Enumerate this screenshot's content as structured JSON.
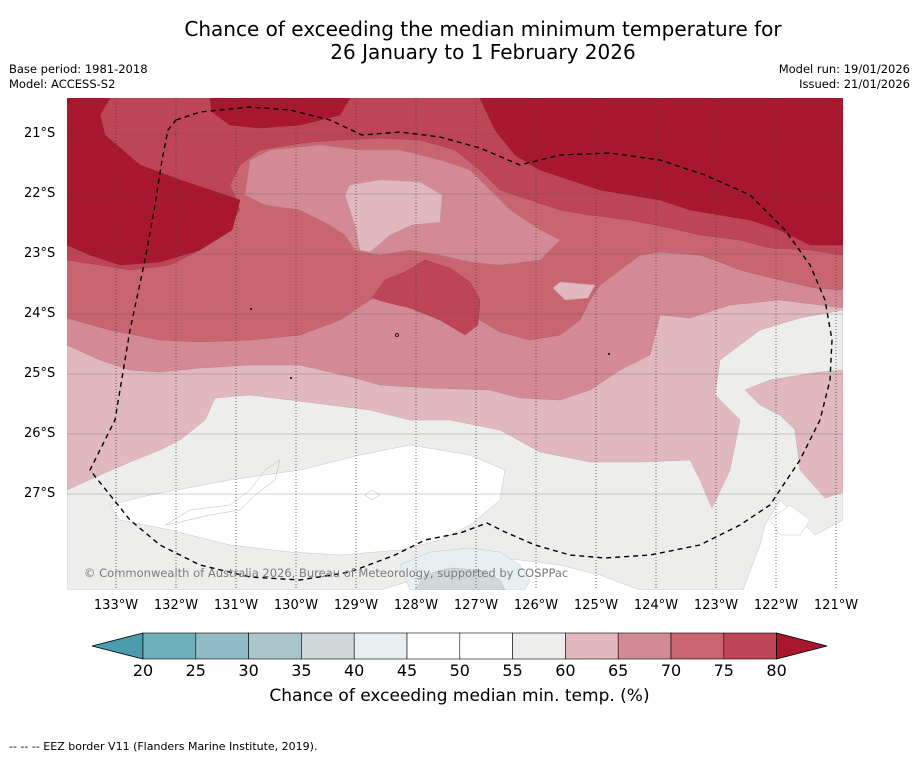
{
  "title": {
    "line1": "Chance of exceeding the median minimum temperature for",
    "line2": "26 January to 1 February 2026"
  },
  "meta_left": {
    "base_period": "Base period: 1981-2018",
    "model": "Model: ACCESS-S2"
  },
  "meta_right": {
    "model_run": "Model run: 19/01/2026",
    "issued": "Issued: 21/01/2026"
  },
  "map": {
    "lat_labels": [
      "21°S",
      "22°S",
      "23°S",
      "24°S",
      "25°S",
      "26°S",
      "27°S"
    ],
    "lon_labels": [
      "133°W",
      "132°W",
      "131°W",
      "130°W",
      "129°W",
      "128°W",
      "127°W",
      "126°W",
      "125°W",
      "124°W",
      "123°W",
      "122°W",
      "121°W"
    ],
    "extent": {
      "lon_min": -133.8,
      "lon_max": -120.9,
      "lat_min": -28.25,
      "lat_max": -20.4
    },
    "copyright": "© Commonwealth of Australia 2026, Bureau of Meteorology, supported by COSPPac"
  },
  "colorbar": {
    "ticks": [
      "20",
      "25",
      "30",
      "35",
      "40",
      "45",
      "50",
      "55",
      "60",
      "65",
      "70",
      "75",
      "80"
    ],
    "colors": [
      "#4b9cac",
      "#6faebb",
      "#8fbcc6",
      "#aac6cb",
      "#d0d8da",
      "#e8eff1",
      "#ffffff",
      "#ffffff",
      "#ededec",
      "#e1b8be",
      "#d48a94",
      "#c9656f",
      "#be4555",
      "#a9172e"
    ],
    "label": "Chance of exceeding median min. temp. (%)"
  },
  "footer": "-- -- -- EEZ border V11 (Flanders Marine Institute, 2019)."
}
